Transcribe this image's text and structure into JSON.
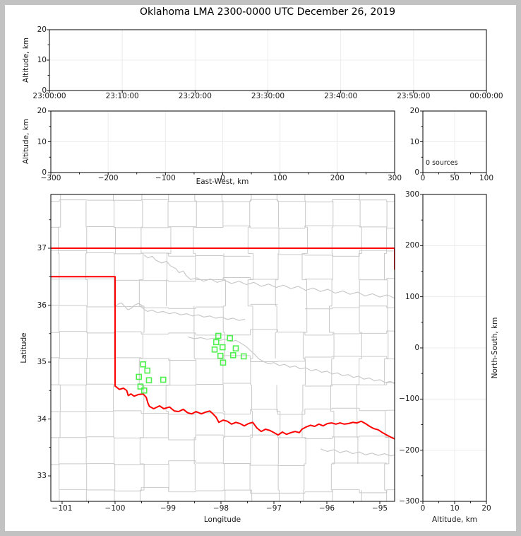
{
  "title": "Oklahoma LMA 2300-0000 UTC December 26, 2019",
  "window": {
    "border_color": "#c2c2c2",
    "background": "#ffffff"
  },
  "colors": {
    "axis": "#000000",
    "text": "#1a1a1a",
    "grid": "#ececec",
    "county": "#c9c9c9",
    "river": "#c9c9c9",
    "state_border": "#ff0000",
    "station_marker": "#4ef04e"
  },
  "panels": {
    "time_height": {
      "ylabel": "Altitude, km",
      "yticks": [
        "0",
        "10",
        "20"
      ],
      "xticks": [
        "23:00:00",
        "23:10:00",
        "23:20:00",
        "23:30:00",
        "23:40:00",
        "23:50:00",
        "00:00:00"
      ]
    },
    "ew_height": {
      "ylabel": "Altitude, km",
      "xlabel": "East-West, km",
      "yticks": [
        "0",
        "10",
        "20"
      ],
      "xticks": [
        "−300",
        "−200",
        "−100",
        "0",
        "100",
        "200",
        "300"
      ]
    },
    "stats": {
      "annotation": "0 sources",
      "xticks": [
        "0",
        "50",
        "100"
      ],
      "yticks": [
        "0",
        "10",
        "20"
      ]
    },
    "map": {
      "xlabel": "Longitude",
      "ylabel": "Latitude",
      "xticks": [
        "−101",
        "−100",
        "−99",
        "−98",
        "−97",
        "−96",
        "−95"
      ],
      "yticks": [
        "33",
        "34",
        "35",
        "36",
        "37"
      ]
    },
    "ns_height": {
      "xlabel": "Altitude, km",
      "ylabel": "North-South, km",
      "xticks": [
        "0",
        "10",
        "20"
      ],
      "yticks": [
        "300",
        "200",
        "100",
        "0",
        "−100",
        "−200",
        "−300"
      ]
    }
  },
  "chart_data": [
    {
      "id": "time-height",
      "type": "scatter",
      "xlabel": "",
      "ylabel": "Altitude, km",
      "xticks": [
        "23:00:00",
        "23:10:00",
        "23:20:00",
        "23:30:00",
        "23:40:00",
        "23:50:00",
        "00:00:00"
      ],
      "yticks": [
        0,
        10,
        20
      ],
      "ylim": [
        0,
        20
      ],
      "grid": true,
      "points": []
    },
    {
      "id": "east-west-height",
      "type": "scatter",
      "xlabel": "East-West, km",
      "ylabel": "Altitude, km",
      "xlim": [
        -300,
        300
      ],
      "ylim": [
        0,
        20
      ],
      "xticks": [
        -300,
        -200,
        -100,
        0,
        100,
        200,
        300
      ],
      "yticks": [
        0,
        10,
        20
      ],
      "grid": true,
      "points": []
    },
    {
      "id": "altitude-stats",
      "type": "scatter",
      "xlabel": "",
      "ylabel": "",
      "xlim": [
        0,
        100
      ],
      "ylim": [
        0,
        20
      ],
      "xticks": [
        0,
        50,
        100
      ],
      "yticks": [
        0,
        10,
        20
      ],
      "annotation": "0 sources",
      "grid": true,
      "points": []
    },
    {
      "id": "plan-view-map",
      "type": "scatter",
      "xlabel": "Longitude",
      "ylabel": "Latitude",
      "xlim": [
        -101.21,
        -94.72
      ],
      "ylim": [
        32.55,
        37.94
      ],
      "xticks": [
        -101,
        -100,
        -99,
        -98,
        -97,
        -96,
        -95
      ],
      "yticks": [
        33,
        34,
        35,
        36,
        37
      ],
      "grid": false,
      "series": [
        {
          "name": "lma-stations",
          "marker": "open-square",
          "color": "#4ef04e",
          "points": [
            [
              -99.47,
              34.96
            ],
            [
              -99.39,
              34.85
            ],
            [
              -99.55,
              34.74
            ],
            [
              -99.36,
              34.68
            ],
            [
              -99.09,
              34.69
            ],
            [
              -99.52,
              34.57
            ],
            [
              -99.45,
              34.5
            ],
            [
              -98.05,
              35.46
            ],
            [
              -97.83,
              35.42
            ],
            [
              -98.09,
              35.35
            ],
            [
              -97.97,
              35.26
            ],
            [
              -98.12,
              35.22
            ],
            [
              -97.72,
              35.24
            ],
            [
              -98.01,
              35.11
            ],
            [
              -97.77,
              35.12
            ],
            [
              -97.57,
              35.1
            ],
            [
              -97.96,
              34.99
            ]
          ]
        }
      ]
    },
    {
      "id": "north-south-height",
      "type": "scatter",
      "xlabel": "Altitude, km",
      "ylabel": "North-South, km",
      "xlim": [
        0,
        20
      ],
      "ylim": [
        -300,
        300
      ],
      "xticks": [
        0,
        10,
        20
      ],
      "yticks": [
        300,
        200,
        100,
        0,
        -100,
        -200,
        -300
      ],
      "grid": true,
      "points": []
    }
  ],
  "map_overlays": {
    "state_border": {
      "north": [
        [
          -101.22,
          37.0
        ],
        [
          -94.72,
          37.0
        ]
      ],
      "panhandle": [
        [
          -101.22,
          36.5
        ],
        [
          -100.0,
          36.5
        ],
        [
          -100.0,
          34.58
        ]
      ],
      "east_clip": [
        [
          -94.72,
          37.0
        ],
        [
          -94.72,
          36.63
        ]
      ],
      "red_river": [
        [
          -100.0,
          34.58
        ],
        [
          -99.92,
          34.52
        ],
        [
          -99.84,
          34.54
        ],
        [
          -99.78,
          34.5
        ],
        [
          -99.75,
          34.41
        ],
        [
          -99.7,
          34.44
        ],
        [
          -99.64,
          34.4
        ],
        [
          -99.56,
          34.43
        ],
        [
          -99.47,
          34.44
        ],
        [
          -99.41,
          34.38
        ],
        [
          -99.38,
          34.28
        ],
        [
          -99.35,
          34.22
        ],
        [
          -99.27,
          34.18
        ],
        [
          -99.16,
          34.23
        ],
        [
          -99.08,
          34.18
        ],
        [
          -98.97,
          34.21
        ],
        [
          -98.88,
          34.14
        ],
        [
          -98.8,
          34.13
        ],
        [
          -98.71,
          34.17
        ],
        [
          -98.63,
          34.11
        ],
        [
          -98.55,
          34.09
        ],
        [
          -98.47,
          34.13
        ],
        [
          -98.37,
          34.09
        ],
        [
          -98.29,
          34.12
        ],
        [
          -98.21,
          34.14
        ],
        [
          -98.15,
          34.09
        ],
        [
          -98.09,
          34.03
        ],
        [
          -98.04,
          33.94
        ],
        [
          -97.96,
          33.98
        ],
        [
          -97.88,
          33.96
        ],
        [
          -97.8,
          33.91
        ],
        [
          -97.72,
          33.94
        ],
        [
          -97.64,
          33.92
        ],
        [
          -97.56,
          33.88
        ],
        [
          -97.48,
          33.92
        ],
        [
          -97.4,
          33.94
        ],
        [
          -97.32,
          33.84
        ],
        [
          -97.24,
          33.78
        ],
        [
          -97.16,
          33.82
        ],
        [
          -97.08,
          33.8
        ],
        [
          -97.0,
          33.76
        ],
        [
          -96.92,
          33.72
        ],
        [
          -96.84,
          33.77
        ],
        [
          -96.76,
          33.73
        ],
        [
          -96.68,
          33.76
        ],
        [
          -96.6,
          33.78
        ],
        [
          -96.52,
          33.76
        ],
        [
          -96.47,
          33.82
        ],
        [
          -96.39,
          33.86
        ],
        [
          -96.31,
          33.89
        ],
        [
          -96.23,
          33.87
        ],
        [
          -96.15,
          33.91
        ],
        [
          -96.07,
          33.88
        ],
        [
          -95.99,
          33.92
        ],
        [
          -95.91,
          33.93
        ],
        [
          -95.83,
          33.91
        ],
        [
          -95.75,
          33.93
        ],
        [
          -95.67,
          33.91
        ],
        [
          -95.59,
          33.92
        ],
        [
          -95.51,
          33.94
        ],
        [
          -95.43,
          33.93
        ],
        [
          -95.35,
          33.96
        ],
        [
          -95.27,
          33.92
        ],
        [
          -95.19,
          33.87
        ],
        [
          -95.11,
          33.83
        ],
        [
          -95.03,
          33.81
        ],
        [
          -94.95,
          33.76
        ],
        [
          -94.87,
          33.72
        ],
        [
          -94.79,
          33.68
        ],
        [
          -94.72,
          33.65
        ]
      ]
    },
    "rivers": [
      [
        [
          -99.45,
          36.88
        ],
        [
          -99.38,
          36.83
        ],
        [
          -99.3,
          36.86
        ],
        [
          -99.23,
          36.79
        ],
        [
          -99.12,
          36.74
        ],
        [
          -99.03,
          36.77
        ],
        [
          -98.95,
          36.69
        ],
        [
          -98.85,
          36.64
        ],
        [
          -98.79,
          36.57
        ],
        [
          -98.71,
          36.6
        ],
        [
          -98.66,
          36.52
        ],
        [
          -98.57,
          36.45
        ],
        [
          -98.45,
          36.48
        ],
        [
          -98.33,
          36.42
        ],
        [
          -98.2,
          36.46
        ],
        [
          -98.07,
          36.4
        ],
        [
          -97.94,
          36.44
        ],
        [
          -97.8,
          36.38
        ],
        [
          -97.66,
          36.42
        ],
        [
          -97.52,
          36.36
        ],
        [
          -97.38,
          36.4
        ],
        [
          -97.24,
          36.33
        ],
        [
          -97.1,
          36.37
        ],
        [
          -96.96,
          36.31
        ],
        [
          -96.82,
          36.35
        ],
        [
          -96.68,
          36.29
        ],
        [
          -96.54,
          36.33
        ],
        [
          -96.4,
          36.26
        ],
        [
          -96.26,
          36.3
        ],
        [
          -96.12,
          36.24
        ],
        [
          -95.98,
          36.28
        ],
        [
          -95.84,
          36.21
        ],
        [
          -95.7,
          36.25
        ],
        [
          -95.56,
          36.19
        ],
        [
          -95.42,
          36.23
        ],
        [
          -95.28,
          36.16
        ],
        [
          -95.14,
          36.2
        ],
        [
          -95.0,
          36.14
        ],
        [
          -94.86,
          36.18
        ],
        [
          -94.72,
          36.12
        ]
      ],
      [
        [
          -100.0,
          35.97
        ],
        [
          -99.94,
          36.02
        ],
        [
          -99.88,
          36.04
        ],
        [
          -99.82,
          35.98
        ],
        [
          -99.76,
          35.92
        ],
        [
          -99.7,
          35.94
        ],
        [
          -99.63,
          36.0
        ],
        [
          -99.56,
          36.03
        ],
        [
          -99.5,
          36.0
        ],
        [
          -99.46,
          35.93
        ],
        [
          -99.39,
          35.89
        ],
        [
          -99.3,
          35.91
        ],
        [
          -99.2,
          35.87
        ],
        [
          -99.09,
          35.89
        ],
        [
          -98.98,
          35.85
        ],
        [
          -98.87,
          35.87
        ],
        [
          -98.76,
          35.83
        ],
        [
          -98.65,
          35.85
        ],
        [
          -98.54,
          35.81
        ],
        [
          -98.43,
          35.83
        ],
        [
          -98.32,
          35.79
        ],
        [
          -98.21,
          35.81
        ],
        [
          -98.1,
          35.77
        ],
        [
          -97.99,
          35.79
        ],
        [
          -97.88,
          35.75
        ],
        [
          -97.77,
          35.77
        ],
        [
          -97.66,
          35.73
        ],
        [
          -97.55,
          35.75
        ]
      ],
      [
        [
          -98.62,
          35.44
        ],
        [
          -98.5,
          35.41
        ],
        [
          -98.38,
          35.43
        ],
        [
          -98.26,
          35.4
        ],
        [
          -98.14,
          35.42
        ],
        [
          -98.02,
          35.38
        ],
        [
          -97.92,
          35.4
        ],
        [
          -97.82,
          35.36
        ],
        [
          -97.72,
          35.38
        ],
        [
          -97.62,
          35.33
        ],
        [
          -97.52,
          35.27
        ],
        [
          -97.44,
          35.2
        ],
        [
          -97.36,
          35.13
        ],
        [
          -97.29,
          35.06
        ],
        [
          -97.2,
          35.01
        ],
        [
          -97.1,
          34.97
        ],
        [
          -97.0,
          34.99
        ],
        [
          -96.9,
          34.94
        ],
        [
          -96.8,
          34.96
        ],
        [
          -96.7,
          34.91
        ],
        [
          -96.6,
          34.93
        ],
        [
          -96.5,
          34.88
        ],
        [
          -96.4,
          34.9
        ],
        [
          -96.3,
          34.85
        ],
        [
          -96.2,
          34.87
        ],
        [
          -96.1,
          34.82
        ],
        [
          -96.0,
          34.84
        ],
        [
          -95.9,
          34.79
        ],
        [
          -95.8,
          34.81
        ],
        [
          -95.7,
          34.76
        ],
        [
          -95.6,
          34.78
        ],
        [
          -95.5,
          34.73
        ],
        [
          -95.4,
          34.75
        ],
        [
          -95.3,
          34.7
        ],
        [
          -95.2,
          34.72
        ],
        [
          -95.1,
          34.67
        ],
        [
          -95.0,
          34.69
        ],
        [
          -94.9,
          34.64
        ],
        [
          -94.8,
          34.66
        ],
        [
          -94.72,
          34.62
        ]
      ],
      [
        [
          -96.11,
          33.47
        ],
        [
          -95.99,
          33.43
        ],
        [
          -95.87,
          33.46
        ],
        [
          -95.75,
          33.41
        ],
        [
          -95.63,
          33.44
        ],
        [
          -95.51,
          33.39
        ],
        [
          -95.39,
          33.42
        ],
        [
          -95.27,
          33.37
        ],
        [
          -95.15,
          33.4
        ],
        [
          -95.03,
          33.36
        ],
        [
          -94.91,
          33.39
        ],
        [
          -94.79,
          33.35
        ],
        [
          -94.72,
          33.37
        ]
      ]
    ],
    "county_grid": {
      "seed": 20,
      "lon_start": -101.05,
      "lon_step": 0.515,
      "lat_start": 32.75,
      "lat_step": 0.462,
      "jitter": 0.055,
      "skip_v": 0.1,
      "skip_h": 0.07
    }
  }
}
